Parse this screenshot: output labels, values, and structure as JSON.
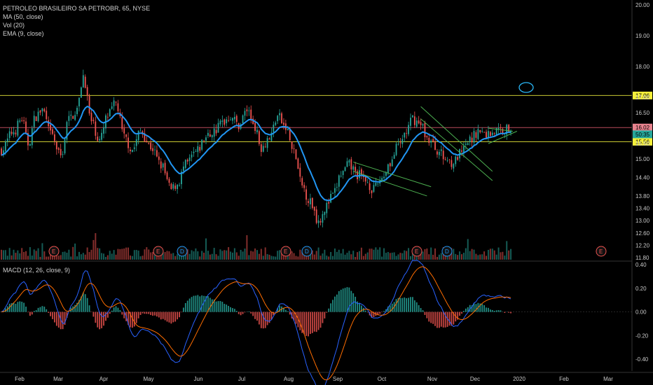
{
  "header": {
    "title": "PETROLEO BRASILEIRO SA PETROBR, 65, NYSE",
    "indicators": [
      "MA (50, close)",
      "Vol (20)",
      "EMA (9, close)"
    ],
    "macd_label": "MACD (12, 26, close, 9)"
  },
  "colors": {
    "background": "#000000",
    "up": "#26a69a",
    "down": "#ef5350",
    "ema": "#2196f3",
    "level": "#c8c832",
    "resistance": "#b84a5a",
    "trend": "#4caf50",
    "macd": "#2962ff",
    "signal": "#ff6d00"
  },
  "chart_data": [
    {
      "type": "candlestick",
      "title": "PETROLEO BRASILEIRO SA PETROBR, 65, NYSE",
      "x_ticks": [
        "Feb",
        "Mar",
        "Apr",
        "May",
        "Jun",
        "Jul",
        "Aug",
        "Sep",
        "Oct",
        "Nov",
        "Dec",
        "2020",
        "Feb",
        "Mar"
      ],
      "y_ticks": [
        11.8,
        12.2,
        12.6,
        13.0,
        13.4,
        13.8,
        14.4,
        15.0,
        15.5,
        16.5,
        17.0,
        18.0,
        19.0,
        20.0
      ],
      "ylim": [
        11.8,
        20.0
      ],
      "grid": false,
      "key_points": [
        {
          "date": "Feb",
          "value": 15.4
        },
        {
          "date": "Mar",
          "value": 16.2
        },
        {
          "date": "Mar (mid)",
          "value": 17.7
        },
        {
          "date": "Apr",
          "value": 16.0
        },
        {
          "date": "Apr (mid)",
          "value": 16.8
        },
        {
          "date": "May (mid)",
          "value": 14.0
        },
        {
          "date": "Jun",
          "value": 15.5
        },
        {
          "date": "Jul",
          "value": 16.7
        },
        {
          "date": "Jul (late)",
          "value": 15.6
        },
        {
          "date": "Aug (mid)",
          "value": 13.2
        },
        {
          "date": "Sep",
          "value": 14.7
        },
        {
          "date": "Oct",
          "value": 14.2
        },
        {
          "date": "Nov",
          "value": 16.6
        },
        {
          "date": "Nov (late)",
          "value": 14.8
        },
        {
          "date": "Dec (mid)",
          "value": 15.9
        }
      ],
      "horizontal_levels": [
        {
          "value": 17.06,
          "label": "17.06"
        },
        {
          "value": 16.02,
          "label": "16.02"
        },
        {
          "value": 15.56,
          "label": "15.56"
        }
      ],
      "last_price_label": "50:35",
      "events": [
        "E",
        "E",
        "D",
        "E",
        "D",
        "E",
        "D",
        "E"
      ]
    },
    {
      "type": "line",
      "title": "MACD (12, 26, close, 9)",
      "y_ticks": [
        0.4,
        0.2,
        0.0,
        -0.2,
        -0.4
      ],
      "ylim": [
        -0.44,
        0.4
      ],
      "series": [
        {
          "name": "MACD"
        },
        {
          "name": "Signal"
        },
        {
          "name": "Histogram"
        }
      ]
    }
  ]
}
